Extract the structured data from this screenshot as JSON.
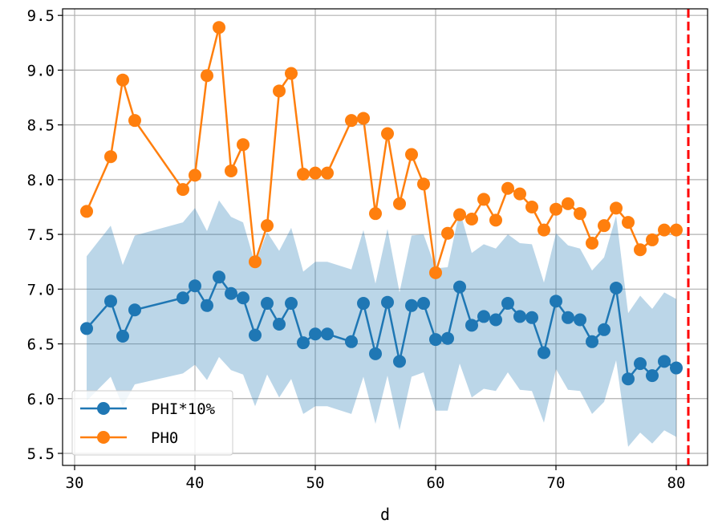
{
  "chart_data": {
    "type": "line",
    "title": "",
    "xlabel": "d",
    "ylabel": "",
    "xlim": [
      29.0,
      82.6
    ],
    "ylim": [
      5.39,
      9.56
    ],
    "xticks": [
      30,
      40,
      50,
      60,
      70,
      80
    ],
    "yticks": [
      5.5,
      6.0,
      6.5,
      7.0,
      7.5,
      8.0,
      8.5,
      9.0,
      9.5
    ],
    "ytick_labels": [
      "5.5",
      "6.0",
      "6.5",
      "7.0",
      "7.5",
      "8.0",
      "8.5",
      "9.0",
      "9.5"
    ],
    "grid": true,
    "legend_position": "lower-left",
    "vline": {
      "x": 81,
      "color": "#ff0000",
      "style": "dashed"
    },
    "band": {
      "color": "#1f77b4",
      "x": [
        31,
        33,
        34,
        35,
        39,
        40,
        41,
        42,
        43,
        44,
        45,
        46,
        47,
        48,
        49,
        50,
        51,
        53,
        54,
        55,
        56,
        57,
        58,
        59,
        60,
        61,
        62,
        63,
        64,
        65,
        66,
        67,
        68,
        69,
        70,
        71,
        72,
        73,
        74,
        75,
        76,
        77,
        78,
        79,
        80
      ],
      "upper": [
        7.3,
        7.58,
        7.22,
        7.49,
        7.61,
        7.74,
        7.53,
        7.81,
        7.66,
        7.61,
        7.23,
        7.52,
        7.35,
        7.56,
        7.16,
        7.25,
        7.25,
        7.18,
        7.54,
        7.05,
        7.55,
        6.97,
        7.49,
        7.5,
        7.19,
        7.2,
        7.72,
        7.33,
        7.41,
        7.37,
        7.5,
        7.42,
        7.41,
        7.06,
        7.51,
        7.4,
        7.37,
        7.17,
        7.29,
        7.67,
        6.78,
        6.94,
        6.82,
        6.97,
        6.91
      ],
      "lower": [
        5.98,
        6.2,
        5.93,
        6.13,
        6.23,
        6.31,
        6.17,
        6.38,
        6.26,
        6.22,
        5.93,
        6.22,
        6.01,
        6.18,
        5.86,
        5.93,
        5.93,
        5.86,
        6.2,
        5.77,
        6.21,
        5.71,
        6.2,
        6.24,
        5.89,
        5.89,
        6.32,
        6.01,
        6.09,
        6.07,
        6.24,
        6.08,
        6.07,
        5.78,
        6.27,
        6.08,
        6.07,
        5.86,
        5.97,
        6.35,
        5.56,
        5.69,
        5.59,
        5.71,
        5.65
      ]
    },
    "series": [
      {
        "name": "PHI*10%",
        "color": "#1f77b4",
        "x": [
          31,
          33,
          34,
          35,
          39,
          40,
          41,
          42,
          43,
          44,
          45,
          46,
          47,
          48,
          49,
          50,
          51,
          53,
          54,
          55,
          56,
          57,
          58,
          59,
          60,
          61,
          62,
          63,
          64,
          65,
          66,
          67,
          68,
          69,
          70,
          71,
          72,
          73,
          74,
          75,
          76,
          77,
          78,
          79,
          80
        ],
        "values": [
          6.64,
          6.89,
          6.57,
          6.81,
          6.92,
          7.03,
          6.85,
          7.11,
          6.96,
          6.92,
          6.58,
          6.87,
          6.68,
          6.87,
          6.51,
          6.59,
          6.59,
          6.52,
          6.87,
          6.41,
          6.88,
          6.34,
          6.85,
          6.87,
          6.54,
          6.55,
          7.02,
          6.67,
          6.75,
          6.72,
          6.87,
          6.75,
          6.74,
          6.42,
          6.89,
          6.74,
          6.72,
          6.52,
          6.63,
          7.01,
          6.18,
          6.32,
          6.21,
          6.34,
          6.28
        ]
      },
      {
        "name": "PH0",
        "color": "#ff7f0e",
        "x": [
          31,
          33,
          34,
          35,
          39,
          40,
          41,
          42,
          43,
          44,
          45,
          46,
          47,
          48,
          49,
          50,
          51,
          53,
          54,
          55,
          56,
          57,
          58,
          59,
          60,
          61,
          62,
          63,
          64,
          65,
          66,
          67,
          68,
          69,
          70,
          71,
          72,
          73,
          74,
          75,
          76,
          77,
          78,
          79,
          80
        ],
        "values": [
          7.71,
          8.21,
          8.91,
          8.54,
          7.91,
          8.04,
          8.95,
          9.39,
          8.08,
          8.32,
          7.25,
          7.58,
          8.81,
          8.97,
          8.05,
          8.06,
          8.06,
          8.54,
          8.56,
          7.69,
          8.42,
          7.78,
          8.23,
          7.96,
          7.15,
          7.51,
          7.68,
          7.64,
          7.82,
          7.63,
          7.92,
          7.87,
          7.75,
          7.54,
          7.73,
          7.78,
          7.69,
          7.42,
          7.58,
          7.74,
          7.61,
          7.36,
          7.45,
          7.54,
          7.54
        ]
      }
    ]
  }
}
